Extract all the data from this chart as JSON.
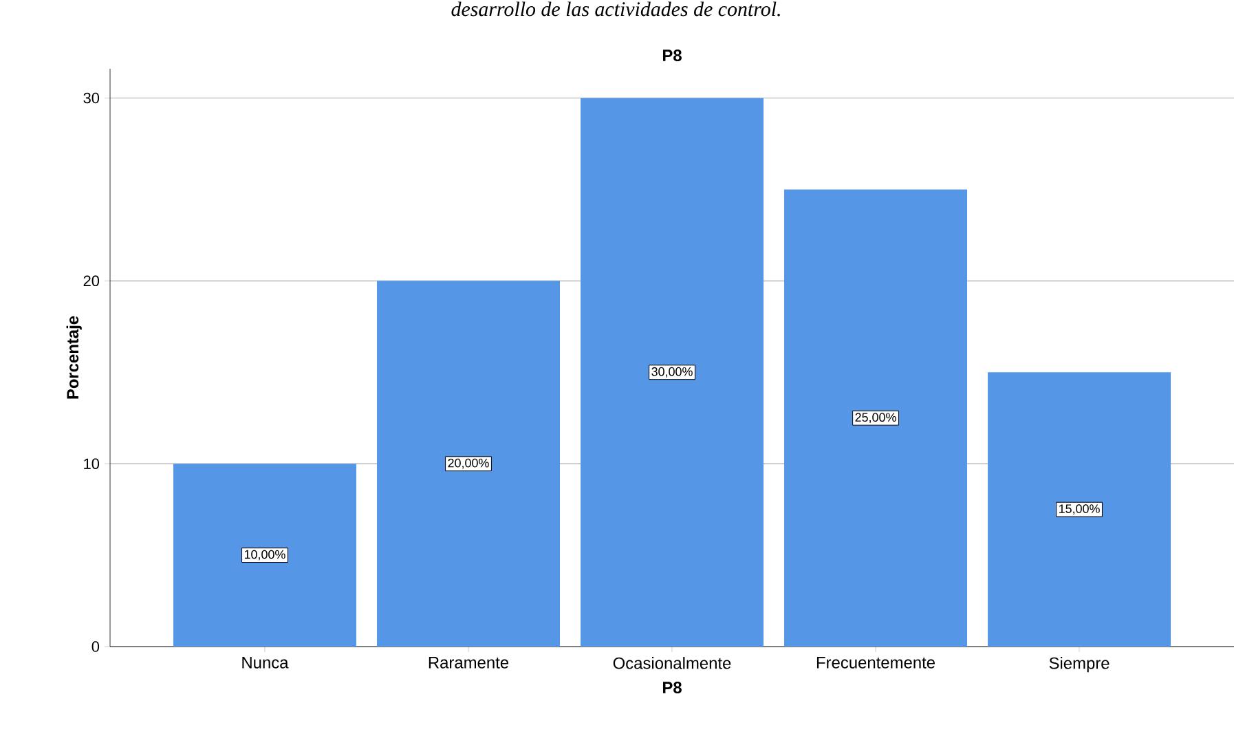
{
  "chart_data": {
    "type": "bar",
    "title": "P8",
    "xlabel": "P8",
    "ylabel": "Porcentaje",
    "annotations": [
      "desarrollo de las actividades de control."
    ],
    "categories": [
      "Nunca",
      "Raramente",
      "Ocasionalmente",
      "Frecuentemente",
      "Siempre"
    ],
    "values": [
      10,
      20,
      30,
      25,
      15
    ],
    "value_labels": [
      "10,00%",
      "20,00%",
      "30,00%",
      "25,00%",
      "15,00%"
    ],
    "color": "#5596e6",
    "ylim": [
      0,
      31.6
    ],
    "yticks": [
      0,
      10,
      20,
      30
    ],
    "grid": "y"
  }
}
